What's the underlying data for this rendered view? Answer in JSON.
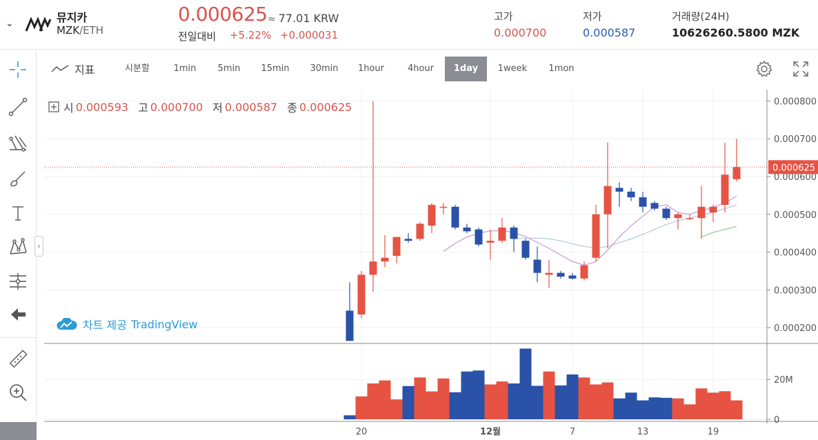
{
  "header": {
    "coin_name": "뮤지카",
    "pair_base": "MZK",
    "pair_quote": "/ETH",
    "price": "0.000625",
    "approx": "≈",
    "krw_value": "77.01 KRW",
    "change_label": "전일대비",
    "change_pct": "+5.22%",
    "change_abs": "+0.000031",
    "high_label": "고가",
    "high_value": "0.000700",
    "low_label": "저가",
    "low_value": "0.000587",
    "volume_label": "거래량(24H)",
    "volume_value": "10626260.5800 MZK",
    "colors": {
      "up": "#e65343",
      "down": "#2a52a8",
      "low_blue": "#2a5bb8"
    }
  },
  "left_toolbar": {
    "tools": [
      "crosshair-icon",
      "trend-line-icon",
      "fib-icon",
      "brush-icon",
      "text-icon",
      "pattern-icon",
      "prediction-icon",
      "back-arrow-icon",
      "ruler-icon",
      "zoom-icon"
    ]
  },
  "toolbar": {
    "indicators_label": "지표",
    "intervals": [
      "시분할",
      "1min",
      "5min",
      "15min",
      "30min",
      "1hour",
      "4hour",
      "1day",
      "1week",
      "1mon"
    ],
    "active_interval": "1day"
  },
  "ohlc": {
    "open_label": "시",
    "open": "0.000593",
    "high_label": "고",
    "high": "0.000700",
    "low_label": "저",
    "low": "0.000587",
    "close_label": "종",
    "close": "0.000625"
  },
  "attribution": {
    "prefix": "차트 제공",
    "brand": "TradingView"
  },
  "chart_data": {
    "type": "candlestick",
    "price_ticks": [
      0.0002,
      0.0003,
      0.0004,
      0.0005,
      0.0006,
      0.0007,
      0.0008
    ],
    "price_tick_labels": [
      "0.000200",
      "0.000300",
      "0.000400",
      "0.000500",
      "0.000600",
      "0.000700",
      "0.000800"
    ],
    "ylim": [
      0.00016,
      0.00083
    ],
    "last_price": 0.000625,
    "last_price_label": "0.000625",
    "x_labels": [
      {
        "text": "20",
        "index": 1
      },
      {
        "text": "12월",
        "index": 12
      },
      {
        "text": "7",
        "index": 19
      },
      {
        "text": "13",
        "index": 25
      },
      {
        "text": "19",
        "index": 31
      }
    ],
    "candles": [
      {
        "o": 0.000245,
        "h": 0.00032,
        "l": 0.000165,
        "c": 0.000165
      },
      {
        "o": 0.000235,
        "h": 0.00035,
        "l": 0.000225,
        "c": 0.00034
      },
      {
        "o": 0.00034,
        "h": 0.0008,
        "l": 0.000295,
        "c": 0.000375
      },
      {
        "o": 0.000375,
        "h": 0.000445,
        "l": 0.00036,
        "c": 0.000385
      },
      {
        "o": 0.00039,
        "h": 0.00044,
        "l": 0.00037,
        "c": 0.00044
      },
      {
        "o": 0.000435,
        "h": 0.00045,
        "l": 0.000425,
        "c": 0.00043
      },
      {
        "o": 0.000435,
        "h": 0.00048,
        "l": 0.00043,
        "c": 0.000475
      },
      {
        "o": 0.00047,
        "h": 0.00053,
        "l": 0.00045,
        "c": 0.000525
      },
      {
        "o": 0.00052,
        "h": 0.00053,
        "l": 0.0005,
        "c": 0.00052
      },
      {
        "o": 0.00052,
        "h": 0.000525,
        "l": 0.00046,
        "c": 0.000465
      },
      {
        "o": 0.000465,
        "h": 0.000475,
        "l": 0.00045,
        "c": 0.000455
      },
      {
        "o": 0.00046,
        "h": 0.000465,
        "l": 0.000415,
        "c": 0.00042
      },
      {
        "o": 0.000425,
        "h": 0.00046,
        "l": 0.00038,
        "c": 0.00043
      },
      {
        "o": 0.00043,
        "h": 0.00049,
        "l": 0.000425,
        "c": 0.000465
      },
      {
        "o": 0.000465,
        "h": 0.00047,
        "l": 0.0004,
        "c": 0.000435
      },
      {
        "o": 0.00043,
        "h": 0.000435,
        "l": 0.00038,
        "c": 0.000385
      },
      {
        "o": 0.00038,
        "h": 0.000415,
        "l": 0.00032,
        "c": 0.000345
      },
      {
        "o": 0.00034,
        "h": 0.00038,
        "l": 0.000305,
        "c": 0.000345
      },
      {
        "o": 0.000345,
        "h": 0.00035,
        "l": 0.00033,
        "c": 0.000335
      },
      {
        "o": 0.000338,
        "h": 0.000345,
        "l": 0.000327,
        "c": 0.00033
      },
      {
        "o": 0.00033,
        "h": 0.000375,
        "l": 0.000325,
        "c": 0.000365
      },
      {
        "o": 0.000385,
        "h": 0.000525,
        "l": 0.000375,
        "c": 0.0005
      },
      {
        "o": 0.0005,
        "h": 0.00069,
        "l": 0.00041,
        "c": 0.000575
      },
      {
        "o": 0.00057,
        "h": 0.000585,
        "l": 0.00052,
        "c": 0.00056
      },
      {
        "o": 0.00056,
        "h": 0.00057,
        "l": 0.000535,
        "c": 0.000545
      },
      {
        "o": 0.000545,
        "h": 0.00056,
        "l": 0.000505,
        "c": 0.00052
      },
      {
        "o": 0.00053,
        "h": 0.000535,
        "l": 0.00051,
        "c": 0.000515
      },
      {
        "o": 0.000515,
        "h": 0.00052,
        "l": 0.000485,
        "c": 0.00049
      },
      {
        "o": 0.00049,
        "h": 0.000505,
        "l": 0.00046,
        "c": 0.0005
      },
      {
        "o": 0.00049,
        "h": 0.0005,
        "l": 0.000485,
        "c": 0.00049
      },
      {
        "o": 0.00049,
        "h": 0.000575,
        "l": 0.000435,
        "c": 0.00052
      },
      {
        "o": 0.000505,
        "h": 0.000525,
        "l": 0.00048,
        "c": 0.00052
      },
      {
        "o": 0.000525,
        "h": 0.00069,
        "l": 0.000505,
        "c": 0.000605
      },
      {
        "o": 0.000593,
        "h": 0.0007,
        "l": 0.000587,
        "c": 0.000625
      }
    ],
    "ma_fast": [
      null,
      null,
      null,
      null,
      null,
      null,
      null,
      null,
      0.000402,
      0.000423,
      0.00044,
      0.00045,
      0.000456,
      0.000457,
      0.000452,
      0.000441,
      0.000426,
      0.00041,
      0.000392,
      0.000375,
      0.000365,
      0.000375,
      0.000405,
      0.00044,
      0.00047,
      0.000495,
      0.00052,
      0.000525,
      0.000505,
      0.0005,
      0.00051,
      0.000518,
      0.00053,
      0.000548
    ],
    "ma_mid": [
      null,
      null,
      null,
      null,
      null,
      null,
      null,
      null,
      null,
      null,
      null,
      null,
      null,
      null,
      0.000435,
      0.000437,
      0.000437,
      0.000435,
      0.00043,
      0.000422,
      0.000415,
      0.000411,
      0.000415,
      0.000425,
      0.000435,
      0.000447,
      0.00046,
      0.000473,
      0.000483,
      0.00049,
      0.000498,
      0.000505,
      0.000515,
      0.000525
    ],
    "ma_slow": [
      null,
      null,
      null,
      null,
      null,
      null,
      null,
      null,
      null,
      null,
      null,
      null,
      null,
      null,
      null,
      null,
      null,
      null,
      null,
      null,
      null,
      null,
      null,
      null,
      null,
      null,
      null,
      null,
      null,
      null,
      0.00044,
      0.000452,
      0.00046,
      0.000468
    ],
    "volume_ticks": [
      0,
      20000000
    ],
    "volume_tick_labels": [
      "0",
      "20M"
    ],
    "volume_ylim": [
      0,
      36000000
    ],
    "volumes": [
      2000000,
      11500000,
      18000000,
      19500000,
      10000000,
      16700000,
      21000000,
      14000000,
      20500000,
      13600000,
      24000000,
      24500000,
      17500000,
      19000000,
      18000000,
      35500000,
      16800000,
      24000000,
      17000000,
      22500000,
      21000000,
      17500000,
      18500000,
      10500000,
      13400000,
      9500000,
      11000000,
      10800000,
      10500000,
      7500000,
      15500000,
      13400000,
      14100000,
      9500000
    ]
  }
}
